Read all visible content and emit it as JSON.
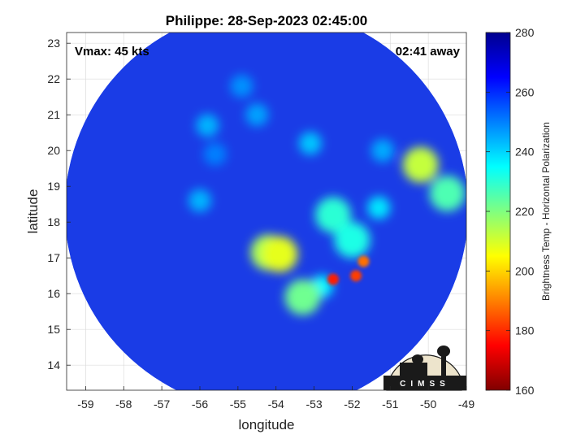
{
  "title": "Philippe: 28-Sep-2023 02:45:00",
  "xlabel": "longitude",
  "ylabel": "latitude",
  "vmax_label": "Vmax: 45 kts",
  "time_label": "02:41 away",
  "colorbar_label": "Brightness Temp - Horizontal Polarization",
  "logo_text": "CIMSS",
  "x_ticks": [
    "-59",
    "-58",
    "-57",
    "-56",
    "-55",
    "-54",
    "-53",
    "-52",
    "-51",
    "-50",
    "-49"
  ],
  "y_ticks": [
    "23",
    "22",
    "21",
    "20",
    "19",
    "18",
    "17",
    "16",
    "15",
    "14"
  ],
  "cb_ticks": [
    "280",
    "260",
    "240",
    "220",
    "200",
    "180",
    "160"
  ],
  "colors": {
    "background_field": "#1a3ce6",
    "cold_core": "#c81010",
    "colormap": [
      "#00008f",
      "#0000ff",
      "#0080ff",
      "#00ffff",
      "#80ff80",
      "#ffff00",
      "#ff8000",
      "#ff0000",
      "#800000"
    ]
  },
  "chart_data": {
    "type": "heatmap",
    "title": "Philippe: 28-Sep-2023 02:45:00",
    "xlabel": "longitude",
    "ylabel": "latitude",
    "xlim": [
      -59.5,
      -49
    ],
    "ylim": [
      13.3,
      23.3
    ],
    "colorbar": {
      "label": "Brightness Temp - Horizontal Polarization",
      "range": [
        160,
        280
      ],
      "ticks": [
        160,
        180,
        200,
        220,
        240,
        260,
        280
      ]
    },
    "annotations": [
      "Vmax: 45 kts",
      "02:41 away"
    ],
    "swath": {
      "center_lon": -54.25,
      "center_lat": 18.35,
      "radius_deg": 5.3
    },
    "features": [
      {
        "lon": -52.5,
        "lat": 18.2,
        "value": 230
      },
      {
        "lon": -52.0,
        "lat": 17.5,
        "value": 232
      },
      {
        "lon": -51.3,
        "lat": 18.4,
        "value": 238
      },
      {
        "lon": -52.8,
        "lat": 16.2,
        "value": 236
      },
      {
        "lon": -52.5,
        "lat": 16.4,
        "value": 178
      },
      {
        "lon": -51.9,
        "lat": 16.5,
        "value": 182
      },
      {
        "lon": -51.7,
        "lat": 16.9,
        "value": 188
      },
      {
        "lon": -53.3,
        "lat": 15.9,
        "value": 222
      },
      {
        "lon": -50.2,
        "lat": 19.6,
        "value": 212
      },
      {
        "lon": -49.5,
        "lat": 18.8,
        "value": 226
      },
      {
        "lon": -54.2,
        "lat": 17.15,
        "value": 215
      },
      {
        "lon": -53.9,
        "lat": 17.1,
        "value": 208
      },
      {
        "lon": -53.1,
        "lat": 20.2,
        "value": 242
      },
      {
        "lon": -54.5,
        "lat": 21.0,
        "value": 246
      },
      {
        "lon": -54.9,
        "lat": 21.8,
        "value": 248
      },
      {
        "lon": -55.8,
        "lat": 20.7,
        "value": 244
      },
      {
        "lon": -55.6,
        "lat": 19.9,
        "value": 250
      },
      {
        "lon": -51.2,
        "lat": 20.0,
        "value": 245
      },
      {
        "lon": -56.0,
        "lat": 18.6,
        "value": 244
      }
    ]
  }
}
